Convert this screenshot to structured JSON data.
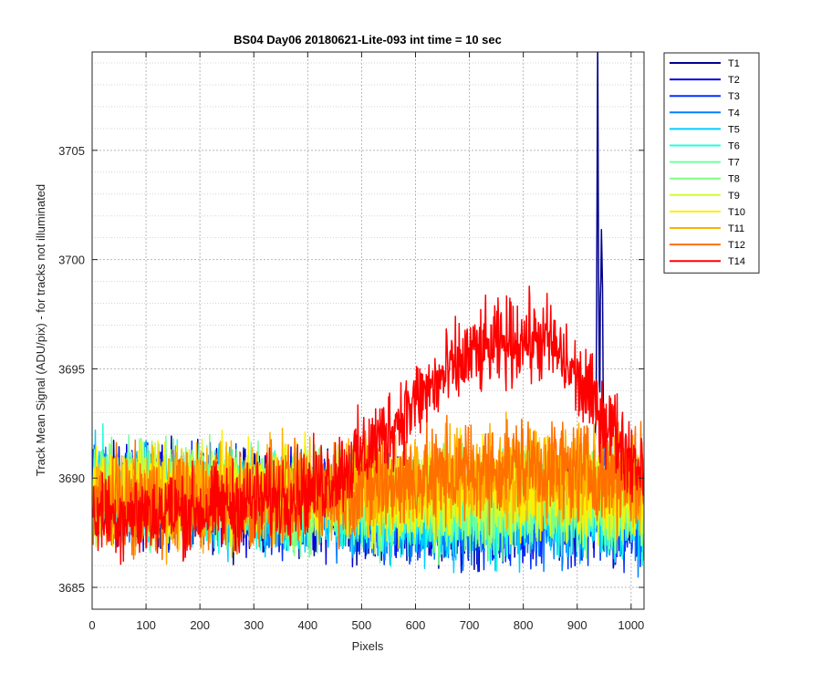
{
  "chart_data": {
    "type": "line",
    "title": "BS04 Day06 20180621-Lite-093 int time = 10 sec",
    "xlabel": "Pixels",
    "ylabel": "Track Mean Signal (ADU/pix) - for tracks not illuminated",
    "xlim": [
      0,
      1024
    ],
    "ylim": [
      3684,
      3709.5
    ],
    "x_ticks": [
      0,
      100,
      200,
      300,
      400,
      500,
      600,
      700,
      800,
      900,
      1000
    ],
    "y_ticks": [
      3685,
      3690,
      3695,
      3700,
      3705
    ],
    "grid": "major and minor, dotted",
    "legend_position": "outside-right",
    "series": [
      {
        "name": "T1",
        "color": "#00008f",
        "trend": [
          [
            0,
            3689.5
          ],
          [
            200,
            3689.0
          ],
          [
            400,
            3689.0
          ],
          [
            600,
            3688.4
          ],
          [
            800,
            3688.3
          ],
          [
            930,
            3688.5
          ],
          [
            935,
            3692.0
          ],
          [
            938,
            3709.5
          ],
          [
            941,
            3693.0
          ],
          [
            945,
            3703.0
          ],
          [
            950,
            3690.0
          ],
          [
            1024,
            3688.6
          ]
        ],
        "noise": 1.6
      },
      {
        "name": "T2",
        "color": "#0000df",
        "trend": [
          [
            0,
            3689.4
          ],
          [
            300,
            3689.0
          ],
          [
            600,
            3688.3
          ],
          [
            1024,
            3688.3
          ]
        ],
        "noise": 1.6
      },
      {
        "name": "T3",
        "color": "#0030ff",
        "trend": [
          [
            0,
            3689.3
          ],
          [
            300,
            3688.9
          ],
          [
            600,
            3688.2
          ],
          [
            1024,
            3688.2
          ]
        ],
        "noise": 1.6
      },
      {
        "name": "T4",
        "color": "#0080ff",
        "trend": [
          [
            0,
            3689.3
          ],
          [
            300,
            3688.9
          ],
          [
            600,
            3688.1
          ],
          [
            1024,
            3688.2
          ]
        ],
        "noise": 1.6
      },
      {
        "name": "T5",
        "color": "#00cfff",
        "trend": [
          [
            0,
            3689.4
          ],
          [
            300,
            3689.0
          ],
          [
            600,
            3688.3
          ],
          [
            1024,
            3688.4
          ]
        ],
        "noise": 1.6
      },
      {
        "name": "T6",
        "color": "#20ffdf",
        "trend": [
          [
            0,
            3689.5
          ],
          [
            300,
            3689.1
          ],
          [
            600,
            3688.6
          ],
          [
            1024,
            3688.6
          ]
        ],
        "noise": 1.6
      },
      {
        "name": "T7",
        "color": "#70ffa0",
        "trend": [
          [
            0,
            3689.5
          ],
          [
            300,
            3689.2
          ],
          [
            600,
            3688.8
          ],
          [
            1024,
            3688.9
          ]
        ],
        "noise": 1.6
      },
      {
        "name": "T8",
        "color": "#80ff80",
        "trend": [
          [
            0,
            3689.6
          ],
          [
            300,
            3689.2
          ],
          [
            600,
            3689.0
          ],
          [
            1024,
            3689.0
          ]
        ],
        "noise": 1.6
      },
      {
        "name": "T9",
        "color": "#cfff30",
        "trend": [
          [
            0,
            3689.5
          ],
          [
            300,
            3689.3
          ],
          [
            600,
            3689.2
          ],
          [
            800,
            3689.3
          ],
          [
            1024,
            3689.2
          ]
        ],
        "noise": 1.6
      },
      {
        "name": "T10",
        "color": "#ffef00",
        "trend": [
          [
            0,
            3689.4
          ],
          [
            300,
            3689.2
          ],
          [
            600,
            3689.4
          ],
          [
            800,
            3689.6
          ],
          [
            1024,
            3689.4
          ]
        ],
        "noise": 1.6
      },
      {
        "name": "T11",
        "color": "#ffb000",
        "trend": [
          [
            0,
            3689.2
          ],
          [
            300,
            3689.1
          ],
          [
            500,
            3689.6
          ],
          [
            800,
            3690.2
          ],
          [
            1024,
            3689.8
          ]
        ],
        "noise": 1.7
      },
      {
        "name": "T12",
        "color": "#ff7000",
        "trend": [
          [
            0,
            3688.8
          ],
          [
            300,
            3688.9
          ],
          [
            500,
            3689.6
          ],
          [
            800,
            3690.6
          ],
          [
            1024,
            3690.0
          ]
        ],
        "noise": 1.7
      },
      {
        "name": "T14",
        "color": "#ff0000",
        "trend": [
          [
            0,
            3688.3
          ],
          [
            200,
            3688.5
          ],
          [
            400,
            3689.4
          ],
          [
            500,
            3691.0
          ],
          [
            600,
            3693.5
          ],
          [
            700,
            3695.6
          ],
          [
            800,
            3696.4
          ],
          [
            850,
            3696.2
          ],
          [
            900,
            3694.5
          ],
          [
            1000,
            3691.0
          ],
          [
            1024,
            3690.5
          ]
        ],
        "noise": 1.5
      }
    ]
  }
}
